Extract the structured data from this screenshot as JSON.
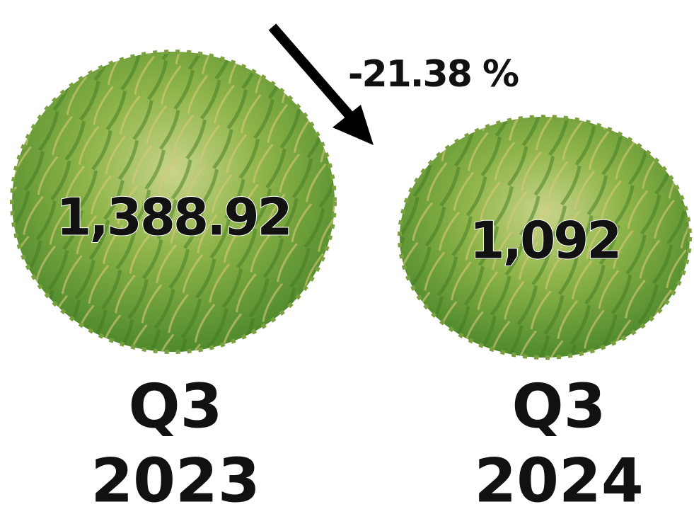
{
  "change": {
    "label": "-21.38 %"
  },
  "periods": [
    {
      "value": "1,388.92",
      "quarter": "Q3",
      "year": "2023"
    },
    {
      "value": "1,092",
      "quarter": "Q3",
      "year": "2024"
    }
  ]
}
